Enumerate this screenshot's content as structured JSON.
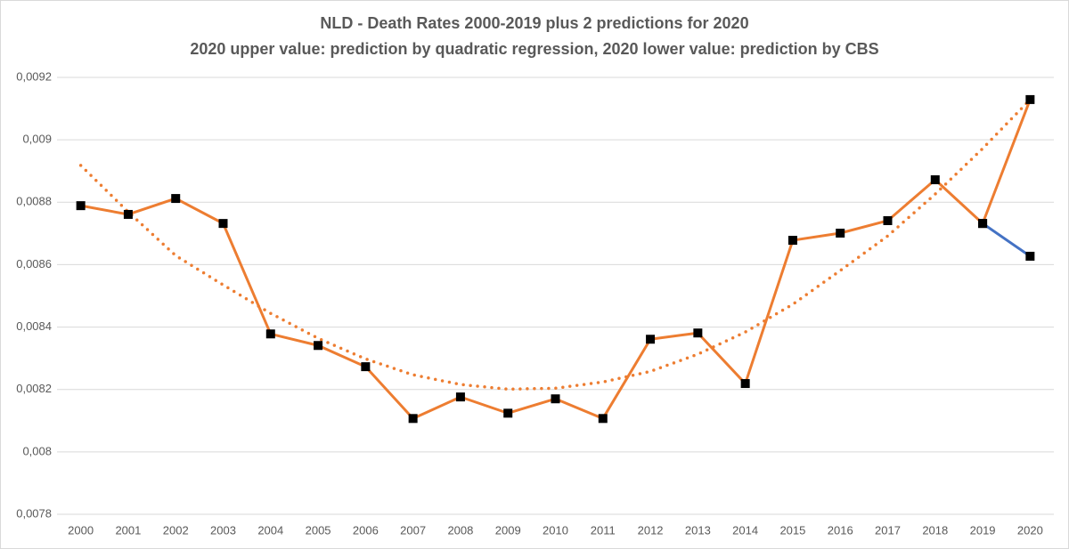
{
  "chart_data": {
    "type": "line",
    "title": "NLD - Death Rates 2000-2019 plus 2 predictions for 2020",
    "subtitle": "2020 upper value: prediction by quadratic regression, 2020 lower value: prediction by CBS",
    "categories": [
      "2000",
      "2001",
      "2002",
      "2003",
      "2004",
      "2005",
      "2006",
      "2007",
      "2008",
      "2009",
      "2010",
      "2011",
      "2012",
      "2013",
      "2014",
      "2015",
      "2016",
      "2017",
      "2018",
      "2019",
      "2020"
    ],
    "series": [
      {
        "color": "#ed7d31",
        "style": "solid",
        "markers": true,
        "values": [
          0.008789,
          0.008761,
          0.008812,
          0.008732,
          0.008378,
          0.008341,
          0.008273,
          0.008107,
          0.008176,
          0.008124,
          0.00817,
          0.008107,
          0.008361,
          0.008381,
          0.008219,
          0.008678,
          0.008701,
          0.008741,
          0.008872,
          0.008732,
          0.009129
        ]
      },
      {
        "color": "#4472c4",
        "style": "solid",
        "markers": true,
        "values": [
          null,
          null,
          null,
          null,
          null,
          null,
          null,
          null,
          null,
          null,
          null,
          null,
          null,
          null,
          null,
          null,
          null,
          null,
          null,
          0.008732,
          0.008627
        ]
      },
      {
        "color": "#ed7d31",
        "style": "dotted",
        "markers": false,
        "values": [
          0.008918,
          0.008769,
          0.008629,
          0.008535,
          0.008444,
          0.008364,
          0.008298,
          0.008247,
          0.008216,
          0.008201,
          0.008204,
          0.008224,
          0.008258,
          0.008313,
          0.008384,
          0.008473,
          0.008581,
          0.008692,
          0.008826,
          0.008972,
          0.009129
        ]
      }
    ],
    "marker_color": "#000000",
    "ylim": [
      0.0078,
      0.0092
    ],
    "yticks": [
      {
        "value": 0.0078,
        "label": "0,0078"
      },
      {
        "value": 0.008,
        "label": "0,008"
      },
      {
        "value": 0.0082,
        "label": "0,0082"
      },
      {
        "value": 0.0084,
        "label": "0,0084"
      },
      {
        "value": 0.0086,
        "label": "0,0086"
      },
      {
        "value": 0.0088,
        "label": "0,0088"
      },
      {
        "value": 0.009,
        "label": "0,009"
      },
      {
        "value": 0.0092,
        "label": "0,0092"
      }
    ],
    "grid": true
  }
}
